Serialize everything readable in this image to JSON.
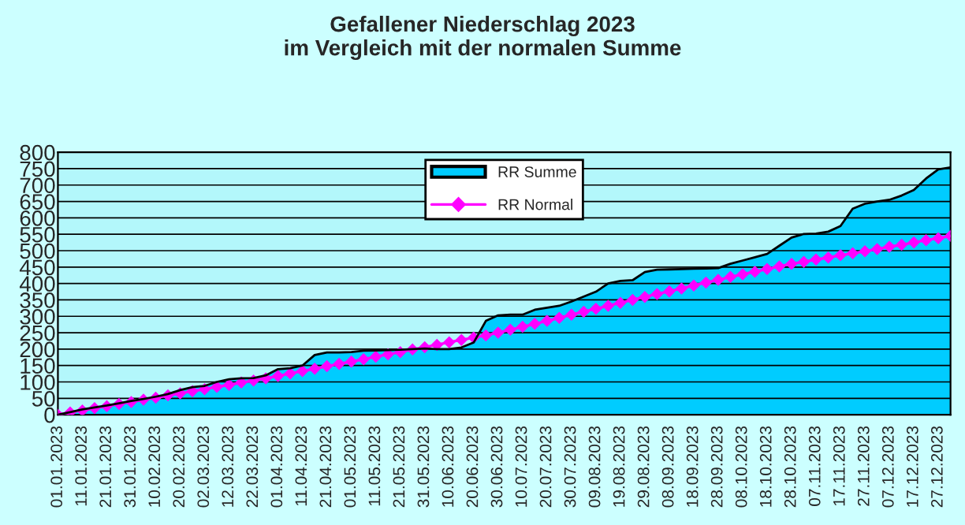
{
  "chart_data": {
    "type": "area",
    "title": "Gefallener Niederschlag 2023\nim Vergleich mit der normalen Summe",
    "categories": [
      "01.01.2023",
      null,
      "11.01.2023",
      null,
      "21.01.2023",
      null,
      "31.01.2023",
      null,
      "10.02.2023",
      null,
      "20.02.2023",
      null,
      "02.03.2023",
      null,
      "12.03.2023",
      null,
      "22.03.2023",
      null,
      "01.04.2023",
      null,
      "11.04.2023",
      null,
      "21.04.2023",
      null,
      "01.05.2023",
      null,
      "11.05.2023",
      null,
      "21.05.2023",
      null,
      "31.05.2023",
      null,
      "10.06.2023",
      null,
      "20.06.2023",
      null,
      "30.06.2023",
      null,
      "10.07.2023",
      null,
      "20.07.2023",
      null,
      "30.07.2023",
      null,
      "09.08.2023",
      null,
      "19.08.2023",
      null,
      "29.08.2023",
      null,
      "08.09.2023",
      null,
      "18.09.2023",
      null,
      "28.09.2023",
      null,
      "08.10.2023",
      null,
      "18.10.2023",
      null,
      "28.10.2023",
      null,
      "07.11.2023",
      null,
      "17.11.2023",
      null,
      "27.11.2023",
      null,
      "07.12.2023",
      null,
      "17.12.2023",
      null,
      "27.12.2023",
      null
    ],
    "series": [
      {
        "name": "RR Summe",
        "color": "#00ccff",
        "values": [
          0,
          8,
          16,
          22,
          28,
          35,
          42,
          48,
          55,
          63,
          75,
          84,
          88,
          100,
          108,
          111,
          112,
          120,
          139,
          142,
          150,
          182,
          190,
          190,
          191,
          195,
          196,
          197,
          198,
          200,
          202,
          200,
          200,
          205,
          220,
          286,
          303,
          305,
          305,
          320,
          326,
          332,
          345,
          360,
          375,
          400,
          408,
          410,
          435,
          442,
          443,
          444,
          445,
          446,
          447,
          460,
          470,
          480,
          490,
          515,
          540,
          551,
          552,
          558,
          575,
          628,
          643,
          650,
          655,
          668,
          685,
          720,
          748,
          754
        ]
      },
      {
        "name": "RR Normal",
        "type": "line",
        "color": "#ff00ff",
        "marker": "diamond",
        "values": [
          0,
          7,
          13,
          20,
          26,
          33,
          39,
          46,
          52,
          59,
          65,
          72,
          78,
          85,
          91,
          98,
          104,
          111,
          118,
          126,
          133,
          140,
          148,
          155,
          162,
          169,
          177,
          184,
          191,
          199,
          206,
          213,
          221,
          228,
          235,
          242,
          250,
          259,
          268,
          277,
          286,
          295,
          305,
          314,
          323,
          332,
          341,
          350,
          359,
          368,
          376,
          385,
          394,
          403,
          411,
          420,
          428,
          436,
          444,
          452,
          460,
          466,
          473,
          479,
          486,
          492,
          498,
          505,
          512,
          518,
          525,
          532,
          538,
          545
        ]
      }
    ],
    "ylim": [
      0,
      800
    ],
    "yticks": [
      0,
      50,
      100,
      150,
      200,
      250,
      300,
      350,
      400,
      450,
      500,
      550,
      600,
      650,
      700,
      750,
      800
    ],
    "grid": "y",
    "legend": "top"
  }
}
